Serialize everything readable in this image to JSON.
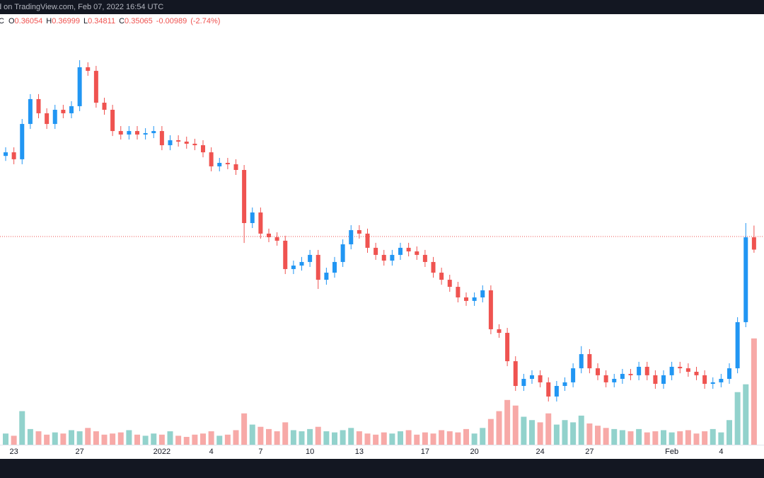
{
  "header": "d on TradingView.com, Feb 07, 2022 16:54 UTC",
  "chart_data": {
    "type": "candlestick",
    "legend": {
      "symbol": "C",
      "items": [
        {
          "key": "O",
          "value": 0.36054
        },
        {
          "key": "H",
          "value": 0.36999
        },
        {
          "key": "L",
          "value": 0.34811
        },
        {
          "key": "C",
          "value": 0.35065
        }
      ],
      "change": -0.00989,
      "change_pct": {
        "value": -2.74,
        "label": "(-2.74%)"
      }
    },
    "categories": [
      null,
      "23",
      null,
      null,
      null,
      null,
      null,
      null,
      null,
      "27",
      null,
      null,
      null,
      null,
      null,
      null,
      null,
      null,
      null,
      "2022",
      null,
      null,
      null,
      null,
      null,
      "4",
      null,
      null,
      null,
      null,
      null,
      "7",
      null,
      null,
      null,
      null,
      null,
      "10",
      null,
      null,
      null,
      null,
      null,
      "13",
      null,
      null,
      null,
      null,
      null,
      null,
      null,
      "17",
      null,
      null,
      null,
      null,
      null,
      "20",
      null,
      null,
      null,
      null,
      null,
      null,
      null,
      "24",
      null,
      null,
      null,
      null,
      null,
      "27",
      null,
      null,
      null,
      null,
      null,
      null,
      null,
      null,
      null,
      "Feb",
      null,
      null,
      null,
      null,
      null,
      "4",
      null,
      null,
      null,
      null
    ],
    "open": [
      0.426,
      0.4289,
      0.4233,
      0.4517,
      0.4717,
      0.4603,
      0.4517,
      0.4631,
      0.4603,
      0.466,
      0.4973,
      0.4944,
      0.4688,
      0.4631,
      0.446,
      0.4432,
      0.446,
      0.4432,
      0.4443,
      0.446,
      0.4346,
      0.4386,
      0.4375,
      0.4358,
      0.4346,
      0.4289,
      0.4176,
      0.4204,
      0.4193,
      0.4147,
      0.372,
      0.3805,
      0.3635,
      0.3606,
      0.3578,
      0.335,
      0.3378,
      0.3407,
      0.3464,
      0.3264,
      0.3321,
      0.3407,
      0.3549,
      0.3663,
      0.3635,
      0.3521,
      0.3464,
      0.3418,
      0.3464,
      0.3521,
      0.3492,
      0.3464,
      0.3407,
      0.3321,
      0.3264,
      0.3207,
      0.3122,
      0.3094,
      0.3122,
      0.3179,
      0.2866,
      0.2837,
      0.2609,
      0.241,
      0.2467,
      0.2496,
      0.2439,
      0.2325,
      0.241,
      0.2439,
      0.2552,
      0.2666,
      0.2552,
      0.2496,
      0.2439,
      0.2467,
      0.2507,
      0.2496,
      0.2564,
      0.2496,
      0.2427,
      0.2496,
      0.2564,
      0.2552,
      0.2524,
      0.2496,
      0.2427,
      0.2439,
      0.2467,
      0.2552,
      0.2923,
      0.36054
    ],
    "high": [
      0.4329,
      0.4329,
      0.4557,
      0.4757,
      0.4757,
      0.4643,
      0.4671,
      0.4671,
      0.47,
      0.503,
      0.5013,
      0.4984,
      0.4728,
      0.4671,
      0.45,
      0.45,
      0.45,
      0.4483,
      0.45,
      0.45,
      0.4426,
      0.4426,
      0.4415,
      0.4398,
      0.4386,
      0.4329,
      0.4244,
      0.4244,
      0.4233,
      0.4187,
      0.3845,
      0.3845,
      0.3675,
      0.3646,
      0.3618,
      0.3418,
      0.3447,
      0.3504,
      0.3504,
      0.3361,
      0.3447,
      0.3589,
      0.3703,
      0.3703,
      0.3675,
      0.3561,
      0.3504,
      0.3504,
      0.3561,
      0.3561,
      0.3532,
      0.3504,
      0.3447,
      0.3361,
      0.3304,
      0.3247,
      0.3162,
      0.3162,
      0.3219,
      0.3219,
      0.2906,
      0.2877,
      0.2649,
      0.2507,
      0.2536,
      0.2536,
      0.2479,
      0.245,
      0.2479,
      0.2592,
      0.273,
      0.2706,
      0.2592,
      0.2536,
      0.2507,
      0.2547,
      0.2547,
      0.2604,
      0.2604,
      0.2536,
      0.2536,
      0.2604,
      0.2604,
      0.2592,
      0.2564,
      0.2536,
      0.2479,
      0.2507,
      0.2592,
      0.2963,
      0.372,
      0.36999
    ],
    "low": [
      0.422,
      0.4193,
      0.4193,
      0.4477,
      0.4563,
      0.4477,
      0.4477,
      0.4563,
      0.4563,
      0.462,
      0.4904,
      0.4648,
      0.4591,
      0.442,
      0.4392,
      0.4392,
      0.4392,
      0.4392,
      0.4403,
      0.4306,
      0.4306,
      0.4335,
      0.4318,
      0.4306,
      0.4249,
      0.4136,
      0.4136,
      0.4153,
      0.4107,
      0.356,
      0.368,
      0.3595,
      0.3566,
      0.3538,
      0.331,
      0.331,
      0.3338,
      0.3367,
      0.319,
      0.3224,
      0.3281,
      0.3367,
      0.3509,
      0.3595,
      0.3481,
      0.3424,
      0.3378,
      0.3378,
      0.3424,
      0.3452,
      0.3424,
      0.3367,
      0.3281,
      0.3224,
      0.3167,
      0.3082,
      0.3054,
      0.3054,
      0.3082,
      0.2826,
      0.2797,
      0.2569,
      0.237,
      0.237,
      0.2427,
      0.2399,
      0.2285,
      0.2285,
      0.237,
      0.2399,
      0.2512,
      0.2512,
      0.2456,
      0.2399,
      0.2399,
      0.2427,
      0.2456,
      0.2456,
      0.2456,
      0.2387,
      0.2387,
      0.2456,
      0.2512,
      0.2484,
      0.2456,
      0.2387,
      0.2387,
      0.2399,
      0.2427,
      0.2512,
      0.2883,
      0.34811
    ],
    "close": [
      0.4289,
      0.4233,
      0.4517,
      0.4717,
      0.4603,
      0.4517,
      0.4631,
      0.4603,
      0.466,
      0.4973,
      0.4944,
      0.4688,
      0.4631,
      0.446,
      0.4432,
      0.446,
      0.4432,
      0.4443,
      0.446,
      0.4346,
      0.4386,
      0.4375,
      0.4358,
      0.4346,
      0.4289,
      0.4176,
      0.4204,
      0.4193,
      0.4147,
      0.372,
      0.3805,
      0.3635,
      0.3606,
      0.3578,
      0.335,
      0.3378,
      0.3407,
      0.3464,
      0.3264,
      0.3321,
      0.3407,
      0.3549,
      0.3663,
      0.3635,
      0.3521,
      0.3464,
      0.3418,
      0.3464,
      0.3521,
      0.3492,
      0.3464,
      0.3407,
      0.3321,
      0.3264,
      0.3207,
      0.3122,
      0.3094,
      0.3122,
      0.3179,
      0.2866,
      0.2837,
      0.2609,
      0.241,
      0.2467,
      0.2496,
      0.2439,
      0.2325,
      0.241,
      0.2439,
      0.2552,
      0.2666,
      0.2552,
      0.2496,
      0.2439,
      0.2467,
      0.2507,
      0.2496,
      0.2564,
      0.2496,
      0.2427,
      0.2496,
      0.2564,
      0.2552,
      0.2524,
      0.2496,
      0.2427,
      0.2439,
      0.2467,
      0.2552,
      0.2923,
      0.36054,
      0.35065
    ],
    "volume": [
      10,
      8,
      30,
      14,
      12,
      9,
      11,
      10,
      13,
      12,
      15,
      12,
      9,
      10,
      11,
      13,
      9,
      8,
      10,
      9,
      12,
      8,
      7,
      9,
      10,
      12,
      8,
      9,
      13,
      28,
      18,
      16,
      14,
      12,
      20,
      13,
      12,
      14,
      16,
      12,
      11,
      13,
      15,
      12,
      10,
      9,
      11,
      10,
      12,
      13,
      9,
      11,
      10,
      13,
      12,
      11,
      14,
      10,
      15,
      23,
      30,
      40,
      35,
      25,
      22,
      20,
      28,
      18,
      22,
      20,
      26,
      19,
      17,
      15,
      14,
      13,
      12,
      14,
      11,
      12,
      13,
      11,
      12,
      13,
      10,
      12,
      14,
      11,
      22,
      47,
      54,
      95
    ],
    "ylim": [
      0.2,
      0.54
    ],
    "volume_lim": [
      0,
      100
    ],
    "price_line": 0.3612,
    "up_color": "#2196f3",
    "down_color": "#ef5350",
    "volume_up_color": "#26a69a",
    "volume_down_color": "#ef5350"
  }
}
